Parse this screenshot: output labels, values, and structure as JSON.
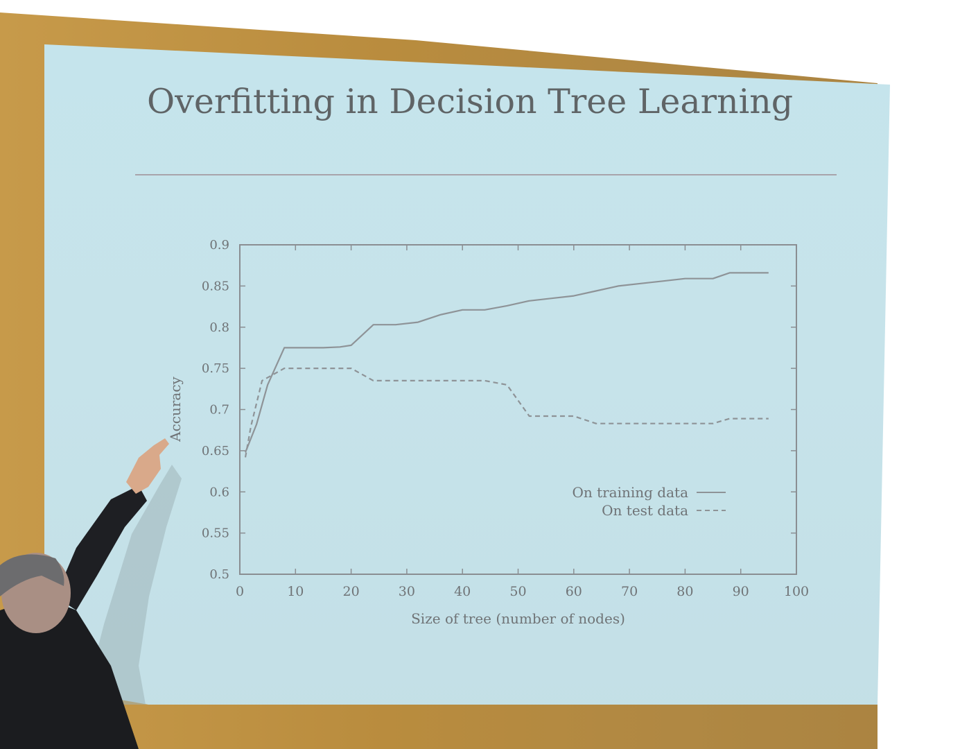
{
  "slide": {
    "title": "Overfitting in Decision Tree Learning"
  },
  "chart_data": {
    "type": "line",
    "xlabel": "Size of tree (number of nodes)",
    "ylabel": "Accuracy",
    "xlim": [
      0,
      100
    ],
    "ylim": [
      0.5,
      0.9
    ],
    "x_ticks": [
      0,
      10,
      20,
      30,
      40,
      50,
      60,
      70,
      80,
      90,
      100
    ],
    "y_ticks": [
      0.5,
      0.55,
      0.6,
      0.65,
      0.7,
      0.75,
      0.8,
      0.85,
      0.9
    ],
    "x_tick_labels": [
      "0",
      "10",
      "20",
      "30",
      "40",
      "50",
      "60",
      "70",
      "80",
      "90",
      "100"
    ],
    "y_tick_labels": [
      "0.5",
      "0.55",
      "0.6",
      "0.65",
      "0.7",
      "0.75",
      "0.8",
      "0.85",
      "0.9"
    ],
    "grid": false,
    "legend_position": "bottom-right",
    "series": [
      {
        "name": "On training data",
        "style": "solid",
        "color": "#8e9397",
        "x": [
          1,
          3,
          5,
          8,
          10,
          15,
          18,
          20,
          24,
          28,
          32,
          36,
          40,
          44,
          48,
          52,
          56,
          60,
          64,
          68,
          72,
          76,
          80,
          85,
          88,
          90,
          95
        ],
        "y": [
          0.648,
          0.682,
          0.73,
          0.775,
          0.775,
          0.775,
          0.776,
          0.778,
          0.803,
          0.803,
          0.806,
          0.815,
          0.821,
          0.821,
          0.826,
          0.832,
          0.835,
          0.838,
          0.844,
          0.85,
          0.853,
          0.856,
          0.859,
          0.859,
          0.866,
          0.866,
          0.866
        ]
      },
      {
        "name": "On test data",
        "style": "dashed",
        "color": "#8e9397",
        "x": [
          1,
          2,
          4,
          8,
          10,
          15,
          20,
          24,
          28,
          32,
          36,
          40,
          44,
          48,
          52,
          56,
          60,
          64,
          68,
          72,
          76,
          80,
          85,
          88,
          90,
          95
        ],
        "y": [
          0.642,
          0.68,
          0.735,
          0.75,
          0.75,
          0.75,
          0.75,
          0.735,
          0.735,
          0.735,
          0.735,
          0.735,
          0.735,
          0.73,
          0.692,
          0.692,
          0.692,
          0.683,
          0.683,
          0.683,
          0.683,
          0.683,
          0.683,
          0.689,
          0.689,
          0.689
        ]
      }
    ]
  }
}
